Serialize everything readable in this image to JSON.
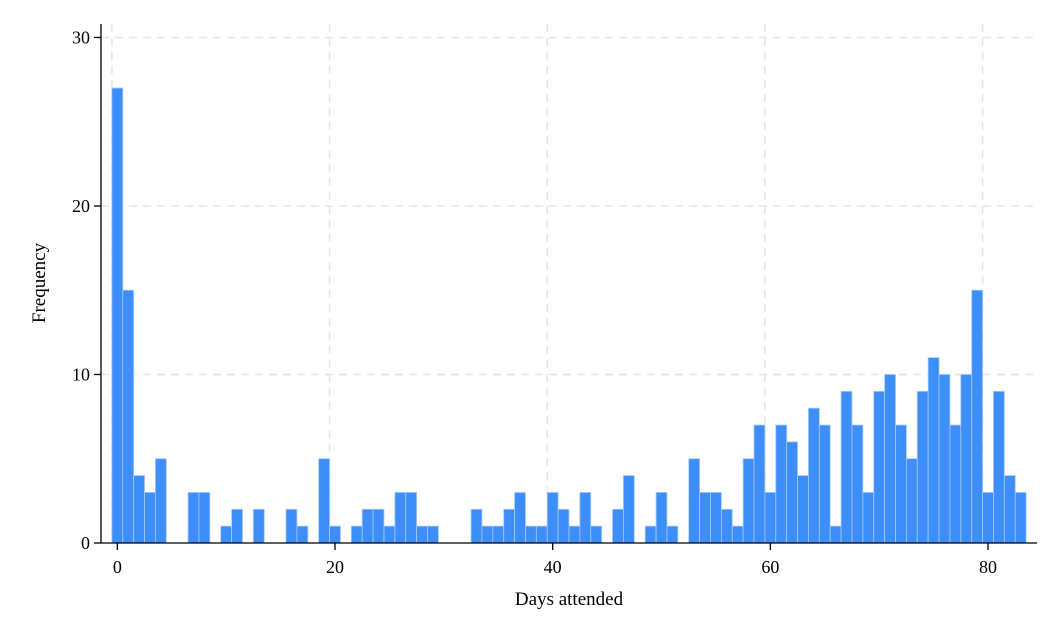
{
  "chart_data": {
    "type": "bar",
    "title": "",
    "xlabel": "Days attended",
    "ylabel": "Frequency",
    "xlim": [
      -1,
      85
    ],
    "ylim": [
      0,
      30.8
    ],
    "xticks": [
      0,
      20,
      40,
      60,
      80
    ],
    "yticks": [
      0,
      10,
      20,
      30
    ],
    "grid": true,
    "bar_color": "#3d8ef8",
    "bar_edge_color": "#a8c8f8",
    "bin_width": 1,
    "x": [
      0,
      1,
      2,
      3,
      4,
      5,
      6,
      7,
      8,
      9,
      10,
      11,
      12,
      13,
      14,
      15,
      16,
      17,
      18,
      19,
      20,
      21,
      22,
      23,
      24,
      25,
      26,
      27,
      28,
      29,
      30,
      31,
      32,
      33,
      34,
      35,
      36,
      37,
      38,
      39,
      40,
      41,
      42,
      43,
      44,
      45,
      46,
      47,
      48,
      49,
      50,
      51,
      52,
      53,
      54,
      55,
      56,
      57,
      58,
      59,
      60,
      61,
      62,
      63,
      64,
      65,
      66,
      67,
      68,
      69,
      70,
      71,
      72,
      73,
      74,
      75,
      76,
      77,
      78,
      79,
      80,
      81,
      82,
      83
    ],
    "values": [
      27,
      15,
      4,
      3,
      5,
      0,
      0,
      3,
      3,
      0,
      1,
      2,
      0,
      2,
      0,
      0,
      2,
      1,
      0,
      5,
      1,
      0,
      1,
      2,
      2,
      1,
      3,
      3,
      1,
      1,
      0,
      0,
      0,
      2,
      1,
      1,
      2,
      3,
      1,
      1,
      3,
      2,
      1,
      3,
      1,
      0,
      2,
      4,
      0,
      1,
      3,
      1,
      0,
      5,
      3,
      3,
      2,
      1,
      5,
      7,
      3,
      7,
      6,
      4,
      8,
      7,
      1,
      9,
      7,
      3,
      9,
      10,
      7,
      5,
      9,
      11,
      10,
      7,
      10,
      15,
      3,
      9,
      4,
      3
    ]
  }
}
